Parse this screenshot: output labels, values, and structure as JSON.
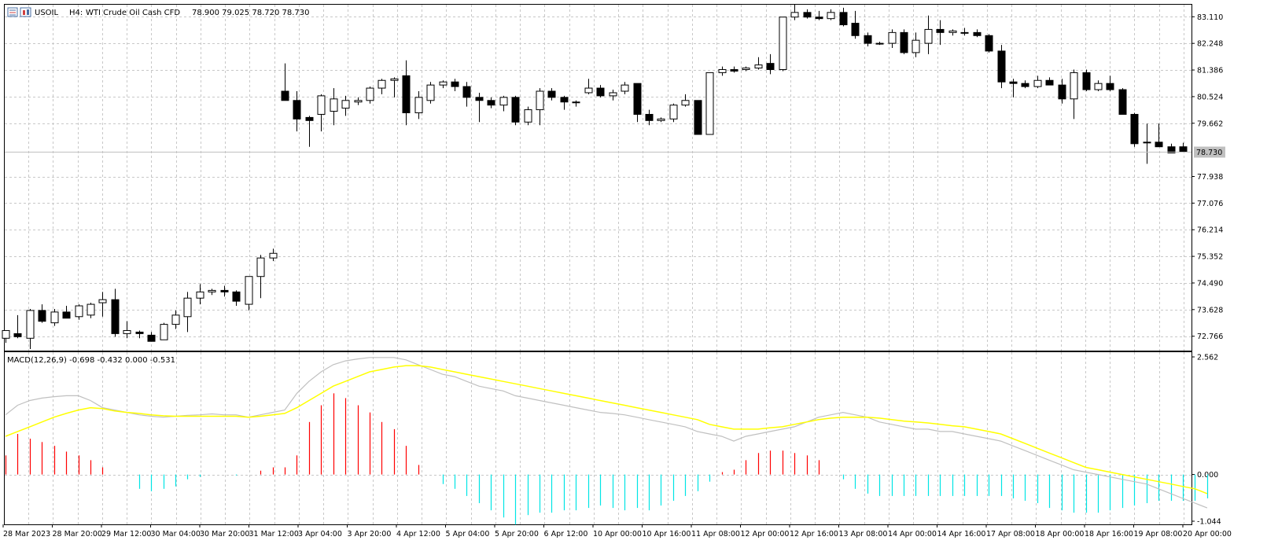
{
  "header": {
    "symbol": "USOIL",
    "timeframe_label": "H4:",
    "description": "WTI Crude Oil Cash CFD",
    "ohlc": "78.900 79.025 78.720 78.730"
  },
  "macd_header": {
    "text": "MACD(12,26,9) -0.698 -0.432 0.000 -0.531"
  },
  "price_axis": {
    "labels": [
      "83.110",
      "82.248",
      "81.386",
      "80.524",
      "79.662",
      "77.938",
      "77.076",
      "76.214",
      "75.352",
      "74.490",
      "73.628",
      "72.766"
    ],
    "current_price_label": "78.730"
  },
  "macd_axis": {
    "labels": [
      "2.562",
      "0.000",
      "-1.044"
    ]
  },
  "time_axis": {
    "labels": [
      "28 Mar 2023",
      "28 Mar 20:00",
      "29 Mar 12:00",
      "30 Mar 04:00",
      "30 Mar 20:00",
      "31 Mar 12:00",
      "3 Apr 04:00",
      "3 Apr 20:00",
      "4 Apr 12:00",
      "5 Apr 04:00",
      "5 Apr 20:00",
      "6 Apr 12:00",
      "10 Apr 00:00",
      "10 Apr 16:00",
      "11 Apr 08:00",
      "12 Apr 00:00",
      "12 Apr 16:00",
      "13 Apr 08:00",
      "14 Apr 00:00",
      "14 Apr 16:00",
      "17 Apr 08:00",
      "18 Apr 00:00",
      "18 Apr 16:00",
      "19 Apr 08:00",
      "20 Apr 00:00"
    ]
  },
  "colors": {
    "bull_fill": "#ffffff",
    "bear_fill": "#000000",
    "grid": "#c8c8c8",
    "macd_positive": "#ff0000",
    "macd_negative": "#00e5e5",
    "signal_line": "#ffff00",
    "macd_line": "#c0c0c0",
    "price_line": "#c0c0c0"
  },
  "chart_data": [
    {
      "type": "candlestick",
      "title": "USOIL, H4: WTI Crude Oil Cash CFD",
      "ylim": [
        72.3,
        83.5
      ],
      "candles": [
        {
          "o": 72.7,
          "h": 72.95,
          "l": 72.55,
          "c": 72.95
        },
        {
          "o": 72.85,
          "h": 73.45,
          "l": 72.7,
          "c": 72.75
        },
        {
          "o": 72.7,
          "h": 73.65,
          "l": 72.35,
          "c": 73.6
        },
        {
          "o": 73.6,
          "h": 73.8,
          "l": 73.2,
          "c": 73.25
        },
        {
          "o": 73.2,
          "h": 73.65,
          "l": 73.1,
          "c": 73.55
        },
        {
          "o": 73.55,
          "h": 73.75,
          "l": 73.4,
          "c": 73.35
        },
        {
          "o": 73.4,
          "h": 73.8,
          "l": 73.3,
          "c": 73.75
        },
        {
          "o": 73.45,
          "h": 73.85,
          "l": 73.35,
          "c": 73.8
        },
        {
          "o": 73.85,
          "h": 74.2,
          "l": 73.4,
          "c": 73.95
        },
        {
          "o": 73.95,
          "h": 74.3,
          "l": 72.75,
          "c": 72.85
        },
        {
          "o": 72.85,
          "h": 73.25,
          "l": 72.7,
          "c": 72.95
        },
        {
          "o": 72.9,
          "h": 72.95,
          "l": 72.7,
          "c": 72.85
        },
        {
          "o": 72.8,
          "h": 72.9,
          "l": 72.6,
          "c": 72.6
        },
        {
          "o": 72.65,
          "h": 73.2,
          "l": 72.65,
          "c": 73.15
        },
        {
          "o": 73.15,
          "h": 73.6,
          "l": 73.0,
          "c": 73.45
        },
        {
          "o": 73.4,
          "h": 74.2,
          "l": 72.9,
          "c": 74.0
        },
        {
          "o": 74.0,
          "h": 74.45,
          "l": 73.8,
          "c": 74.2
        },
        {
          "o": 74.2,
          "h": 74.3,
          "l": 74.1,
          "c": 74.25
        },
        {
          "o": 74.25,
          "h": 74.4,
          "l": 74.05,
          "c": 74.2
        },
        {
          "o": 74.2,
          "h": 74.25,
          "l": 73.75,
          "c": 73.9
        },
        {
          "o": 73.8,
          "h": 74.6,
          "l": 73.6,
          "c": 74.7
        },
        {
          "o": 74.7,
          "h": 75.4,
          "l": 74.0,
          "c": 75.3
        },
        {
          "o": 75.3,
          "h": 75.6,
          "l": 75.2,
          "c": 75.45
        },
        {
          "o": 80.7,
          "h": 81.6,
          "l": 80.4,
          "c": 80.4
        },
        {
          "o": 80.4,
          "h": 80.7,
          "l": 79.4,
          "c": 79.8
        },
        {
          "o": 79.85,
          "h": 79.9,
          "l": 78.9,
          "c": 79.75
        },
        {
          "o": 79.95,
          "h": 80.6,
          "l": 79.4,
          "c": 80.55
        },
        {
          "o": 80.05,
          "h": 80.8,
          "l": 79.6,
          "c": 80.45
        },
        {
          "o": 80.15,
          "h": 80.55,
          "l": 79.9,
          "c": 80.4
        },
        {
          "o": 80.35,
          "h": 80.5,
          "l": 80.25,
          "c": 80.4
        },
        {
          "o": 80.4,
          "h": 80.85,
          "l": 80.3,
          "c": 80.8
        },
        {
          "o": 80.8,
          "h": 81.1,
          "l": 80.6,
          "c": 81.05
        },
        {
          "o": 81.05,
          "h": 81.15,
          "l": 80.5,
          "c": 81.1
        },
        {
          "o": 81.2,
          "h": 81.7,
          "l": 79.6,
          "c": 80.0
        },
        {
          "o": 80.0,
          "h": 80.7,
          "l": 79.8,
          "c": 80.5
        },
        {
          "o": 80.4,
          "h": 81.0,
          "l": 80.3,
          "c": 80.9
        },
        {
          "o": 80.9,
          "h": 81.05,
          "l": 80.8,
          "c": 81.0
        },
        {
          "o": 81.0,
          "h": 81.1,
          "l": 80.7,
          "c": 80.85
        },
        {
          "o": 80.85,
          "h": 81.0,
          "l": 80.2,
          "c": 80.5
        },
        {
          "o": 80.5,
          "h": 80.65,
          "l": 79.7,
          "c": 80.4
        },
        {
          "o": 80.4,
          "h": 80.5,
          "l": 80.15,
          "c": 80.25
        },
        {
          "o": 80.25,
          "h": 80.55,
          "l": 80.05,
          "c": 80.5
        },
        {
          "o": 80.5,
          "h": 80.55,
          "l": 79.6,
          "c": 79.7
        },
        {
          "o": 79.7,
          "h": 80.2,
          "l": 79.6,
          "c": 80.1
        },
        {
          "o": 80.1,
          "h": 80.8,
          "l": 79.6,
          "c": 80.7
        },
        {
          "o": 80.7,
          "h": 80.8,
          "l": 80.4,
          "c": 80.5
        },
        {
          "o": 80.5,
          "h": 80.55,
          "l": 80.1,
          "c": 80.35
        },
        {
          "o": 80.35,
          "h": 80.4,
          "l": 80.2,
          "c": 80.35
        },
        {
          "o": 80.65,
          "h": 81.1,
          "l": 80.6,
          "c": 80.8
        },
        {
          "o": 80.8,
          "h": 80.9,
          "l": 80.5,
          "c": 80.55
        },
        {
          "o": 80.55,
          "h": 80.75,
          "l": 80.4,
          "c": 80.65
        },
        {
          "o": 80.7,
          "h": 81.0,
          "l": 80.6,
          "c": 80.9
        },
        {
          "o": 80.95,
          "h": 80.95,
          "l": 79.7,
          "c": 79.95
        },
        {
          "o": 79.95,
          "h": 80.1,
          "l": 79.6,
          "c": 79.75
        },
        {
          "o": 79.75,
          "h": 79.85,
          "l": 79.7,
          "c": 79.8
        },
        {
          "o": 79.8,
          "h": 80.3,
          "l": 79.7,
          "c": 80.25
        },
        {
          "o": 80.25,
          "h": 80.6,
          "l": 80.2,
          "c": 80.4
        },
        {
          "o": 80.4,
          "h": 80.4,
          "l": 79.3,
          "c": 79.3
        },
        {
          "o": 79.3,
          "h": 81.3,
          "l": 79.3,
          "c": 81.3
        },
        {
          "o": 81.3,
          "h": 81.5,
          "l": 81.2,
          "c": 81.4
        },
        {
          "o": 81.4,
          "h": 81.5,
          "l": 81.3,
          "c": 81.35
        },
        {
          "o": 81.4,
          "h": 81.5,
          "l": 81.35,
          "c": 81.45
        },
        {
          "o": 81.45,
          "h": 81.8,
          "l": 81.4,
          "c": 81.55
        },
        {
          "o": 81.6,
          "h": 81.9,
          "l": 81.25,
          "c": 81.4
        },
        {
          "o": 81.4,
          "h": 83.1,
          "l": 81.35,
          "c": 83.1
        },
        {
          "o": 83.1,
          "h": 83.5,
          "l": 83.0,
          "c": 83.25
        },
        {
          "o": 83.25,
          "h": 83.35,
          "l": 83.05,
          "c": 83.1
        },
        {
          "o": 83.1,
          "h": 83.3,
          "l": 83.0,
          "c": 83.05
        },
        {
          "o": 83.05,
          "h": 83.35,
          "l": 83.0,
          "c": 83.25
        },
        {
          "o": 83.25,
          "h": 83.4,
          "l": 82.8,
          "c": 82.85
        },
        {
          "o": 82.9,
          "h": 83.3,
          "l": 82.4,
          "c": 82.5
        },
        {
          "o": 82.5,
          "h": 82.6,
          "l": 82.15,
          "c": 82.25
        },
        {
          "o": 82.25,
          "h": 82.3,
          "l": 82.2,
          "c": 82.25
        },
        {
          "o": 82.25,
          "h": 82.7,
          "l": 82.1,
          "c": 82.6
        },
        {
          "o": 82.6,
          "h": 82.7,
          "l": 81.9,
          "c": 81.95
        },
        {
          "o": 81.95,
          "h": 82.6,
          "l": 81.8,
          "c": 82.35
        },
        {
          "o": 82.25,
          "h": 83.15,
          "l": 81.9,
          "c": 82.7
        },
        {
          "o": 82.7,
          "h": 83.0,
          "l": 82.2,
          "c": 82.6
        },
        {
          "o": 82.6,
          "h": 82.7,
          "l": 82.5,
          "c": 82.65
        },
        {
          "o": 82.6,
          "h": 82.75,
          "l": 82.5,
          "c": 82.6
        },
        {
          "o": 82.6,
          "h": 82.7,
          "l": 82.45,
          "c": 82.5
        },
        {
          "o": 82.5,
          "h": 82.55,
          "l": 81.95,
          "c": 82.0
        },
        {
          "o": 82.0,
          "h": 82.2,
          "l": 80.8,
          "c": 81.0
        },
        {
          "o": 81.0,
          "h": 81.1,
          "l": 80.5,
          "c": 80.95
        },
        {
          "o": 80.95,
          "h": 81.05,
          "l": 80.8,
          "c": 80.85
        },
        {
          "o": 80.85,
          "h": 81.2,
          "l": 80.8,
          "c": 81.05
        },
        {
          "o": 81.05,
          "h": 81.15,
          "l": 80.9,
          "c": 80.9
        },
        {
          "o": 80.9,
          "h": 81.1,
          "l": 80.3,
          "c": 80.45
        },
        {
          "o": 80.45,
          "h": 81.4,
          "l": 79.8,
          "c": 81.3
        },
        {
          "o": 81.3,
          "h": 81.4,
          "l": 80.7,
          "c": 80.75
        },
        {
          "o": 80.75,
          "h": 81.05,
          "l": 80.7,
          "c": 80.95
        },
        {
          "o": 80.95,
          "h": 81.2,
          "l": 80.7,
          "c": 80.75
        },
        {
          "o": 80.75,
          "h": 80.8,
          "l": 79.95,
          "c": 79.95
        },
        {
          "o": 79.95,
          "h": 80.0,
          "l": 78.9,
          "c": 79.0
        },
        {
          "o": 79.05,
          "h": 79.65,
          "l": 78.35,
          "c": 79.05
        },
        {
          "o": 79.05,
          "h": 79.65,
          "l": 78.9,
          "c": 78.9
        },
        {
          "o": 78.9,
          "h": 79.0,
          "l": 78.7,
          "c": 78.7
        },
        {
          "o": 78.9,
          "h": 79.03,
          "l": 78.72,
          "c": 78.73
        }
      ]
    },
    {
      "type": "bar",
      "title": "MACD(12,26,9) -0.698 -0.432 0.000 -0.531",
      "ylim": [
        -1.044,
        2.562
      ],
      "histogram": [
        0.4,
        0.85,
        0.75,
        0.68,
        0.6,
        0.48,
        0.4,
        0.3,
        0.15,
        0.0,
        0.0,
        -0.3,
        -0.35,
        -0.3,
        -0.25,
        -0.1,
        -0.05,
        0.0,
        0.0,
        -0.02,
        0.0,
        0.08,
        0.15,
        0.15,
        0.4,
        1.1,
        1.45,
        1.7,
        1.6,
        1.45,
        1.3,
        1.1,
        0.95,
        0.6,
        0.2,
        0.0,
        -0.2,
        -0.3,
        -0.45,
        -0.6,
        -0.75,
        -0.9,
        -1.05,
        -0.85,
        -0.8,
        -0.8,
        -0.75,
        -0.75,
        -0.7,
        -0.65,
        -0.7,
        -0.75,
        -0.7,
        -0.75,
        -0.65,
        -0.55,
        -0.45,
        -0.35,
        -0.15,
        0.05,
        0.1,
        0.3,
        0.45,
        0.5,
        0.5,
        0.45,
        0.4,
        0.3,
        0.0,
        -0.1,
        -0.3,
        -0.4,
        -0.45,
        -0.45,
        -0.45,
        -0.45,
        -0.45,
        -0.45,
        -0.45,
        -0.45,
        -0.45,
        -0.45,
        -0.45,
        -0.5,
        -0.55,
        -0.6,
        -0.7,
        -0.75,
        -0.8,
        -0.8,
        -0.8,
        -0.75,
        -0.7,
        -0.65,
        -0.6,
        -0.55,
        -0.55,
        -0.55,
        -0.55,
        -0.5
      ],
      "macd_line": [
        1.25,
        1.45,
        1.55,
        1.6,
        1.63,
        1.65,
        1.65,
        1.55,
        1.4,
        1.35,
        1.3,
        1.25,
        1.22,
        1.2,
        1.22,
        1.24,
        1.25,
        1.27,
        1.25,
        1.25,
        1.2,
        1.25,
        1.3,
        1.35,
        1.7,
        1.95,
        2.15,
        2.3,
        2.38,
        2.42,
        2.45,
        2.45,
        2.45,
        2.4,
        2.3,
        2.2,
        2.1,
        2.05,
        1.95,
        1.85,
        1.8,
        1.75,
        1.65,
        1.6,
        1.55,
        1.5,
        1.45,
        1.4,
        1.35,
        1.3,
        1.28,
        1.25,
        1.2,
        1.15,
        1.1,
        1.05,
        1.0,
        0.9,
        0.85,
        0.8,
        0.7,
        0.8,
        0.85,
        0.9,
        0.95,
        1.0,
        1.1,
        1.2,
        1.25,
        1.3,
        1.25,
        1.2,
        1.1,
        1.05,
        1.0,
        0.95,
        0.95,
        0.9,
        0.9,
        0.85,
        0.8,
        0.75,
        0.7,
        0.6,
        0.5,
        0.4,
        0.3,
        0.2,
        0.1,
        0.05,
        0.0,
        -0.05,
        -0.1,
        -0.15,
        -0.2,
        -0.3,
        -0.4,
        -0.5,
        -0.6,
        -0.7
      ],
      "signal_line": [
        0.8,
        0.9,
        1.0,
        1.1,
        1.2,
        1.28,
        1.35,
        1.4,
        1.38,
        1.33,
        1.3,
        1.28,
        1.25,
        1.23,
        1.22,
        1.22,
        1.22,
        1.22,
        1.22,
        1.22,
        1.2,
        1.22,
        1.25,
        1.28,
        1.4,
        1.55,
        1.7,
        1.85,
        1.95,
        2.05,
        2.15,
        2.2,
        2.25,
        2.28,
        2.28,
        2.25,
        2.2,
        2.15,
        2.1,
        2.05,
        2.0,
        1.95,
        1.9,
        1.85,
        1.8,
        1.75,
        1.7,
        1.65,
        1.6,
        1.55,
        1.5,
        1.45,
        1.4,
        1.35,
        1.3,
        1.25,
        1.2,
        1.15,
        1.05,
        1.0,
        0.95,
        0.95,
        0.95,
        0.98,
        1.0,
        1.05,
        1.1,
        1.15,
        1.18,
        1.2,
        1.2,
        1.2,
        1.18,
        1.15,
        1.12,
        1.1,
        1.08,
        1.05,
        1.02,
        1.0,
        0.95,
        0.9,
        0.85,
        0.75,
        0.65,
        0.55,
        0.45,
        0.35,
        0.25,
        0.15,
        0.1,
        0.05,
        0.0,
        -0.05,
        -0.1,
        -0.15,
        -0.2,
        -0.25,
        -0.3,
        -0.4
      ]
    }
  ]
}
